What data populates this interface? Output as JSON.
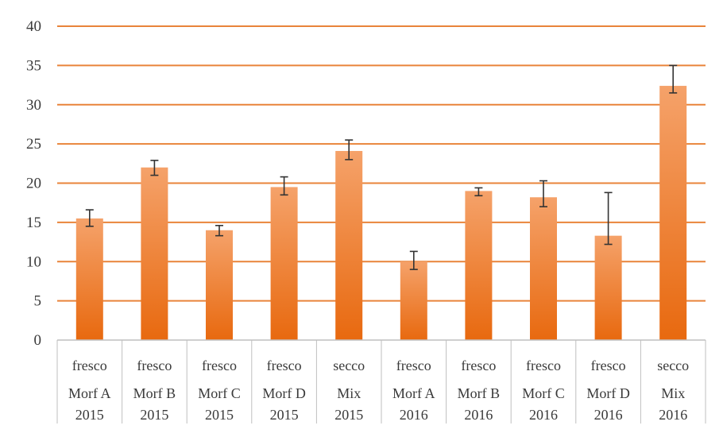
{
  "chart_data": {
    "type": "bar",
    "title": "",
    "xlabel": "",
    "ylabel": "",
    "ylim": [
      0,
      40
    ],
    "y_ticks": [
      0,
      5,
      10,
      15,
      20,
      25,
      30,
      35,
      40
    ],
    "grid": "horizontal",
    "legend": "none",
    "categories": [
      {
        "line1": "fresco",
        "line2": "Morf A",
        "line3": "2015"
      },
      {
        "line1": "fresco",
        "line2": "Morf B",
        "line3": "2015"
      },
      {
        "line1": "fresco",
        "line2": "Morf C",
        "line3": "2015"
      },
      {
        "line1": "fresco",
        "line2": "Morf D",
        "line3": "2015"
      },
      {
        "line1": "secco",
        "line2": "Mix",
        "line3": "2015"
      },
      {
        "line1": "fresco",
        "line2": "Morf A",
        "line3": "2016"
      },
      {
        "line1": "fresco",
        "line2": "Morf B",
        "line3": "2016"
      },
      {
        "line1": "fresco",
        "line2": "Morf C",
        "line3": "2016"
      },
      {
        "line1": "fresco",
        "line2": "Morf D",
        "line3": "2016"
      },
      {
        "line1": "secco",
        "line2": "Mix",
        "line3": "2016"
      }
    ],
    "values": [
      15.5,
      22.0,
      14.0,
      19.5,
      24.1,
      10.0,
      19.0,
      18.2,
      13.3,
      32.4
    ],
    "error_bars": [
      [
        14.5,
        16.6
      ],
      [
        21.0,
        22.9
      ],
      [
        13.3,
        14.6
      ],
      [
        18.5,
        20.8
      ],
      [
        23.0,
        25.5
      ],
      [
        9.0,
        11.3
      ],
      [
        18.4,
        19.4
      ],
      [
        17.0,
        20.3
      ],
      [
        12.2,
        18.8
      ],
      [
        31.5,
        35.0
      ]
    ],
    "colors": {
      "bar_top": "#f5a26a",
      "bar_bottom": "#e8690f",
      "grid": "#e9843a",
      "axis": "#bfbfbf",
      "error_bar": "#333333"
    }
  }
}
